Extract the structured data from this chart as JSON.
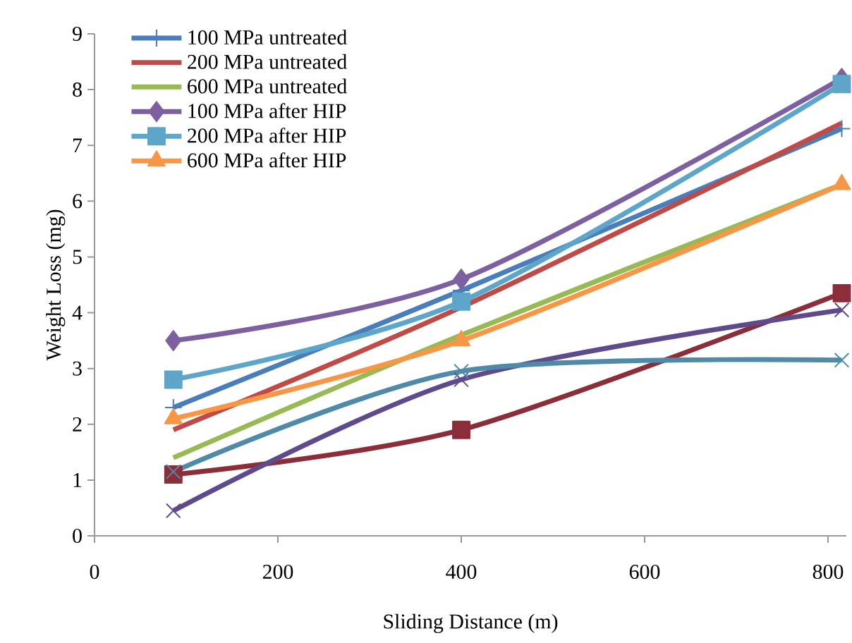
{
  "chart_data": {
    "type": "line",
    "xlabel": "Sliding Distance (m)",
    "ylabel": "Weight Loss (mg)",
    "xlim": [
      0,
      820
    ],
    "xticks": [
      0,
      200,
      400,
      600,
      800
    ],
    "ylim": [
      0,
      9
    ],
    "yticks": [
      0,
      1,
      2,
      3,
      4,
      5,
      6,
      7,
      8,
      9
    ],
    "legend": "top left",
    "grid": false,
    "series": [
      {
        "name": "100 MPa untreated",
        "color": "#4a7ebb",
        "marker": "plus",
        "x": [
          86,
          400,
          815
        ],
        "values": [
          2.3,
          4.4,
          7.3
        ]
      },
      {
        "name": "200 MPa untreated",
        "color": "#be4b48",
        "marker": "none",
        "x": [
          86,
          400,
          815
        ],
        "values": [
          1.9,
          4.1,
          7.4
        ]
      },
      {
        "name": "600 MPa untreated",
        "color": "#98b954",
        "marker": "none",
        "x": [
          86,
          400,
          815
        ],
        "values": [
          1.4,
          3.6,
          6.3
        ]
      },
      {
        "name": "100 MPa after HIP",
        "color": "#7d60a0",
        "marker": "diamond",
        "x": [
          86,
          400,
          815
        ],
        "values": [
          3.5,
          4.6,
          8.2
        ]
      },
      {
        "name": "200 MPa after HIP",
        "color": "#5ea6c9",
        "marker": "square",
        "x": [
          86,
          400,
          815
        ],
        "values": [
          2.8,
          4.2,
          8.1
        ]
      },
      {
        "name": "600 MPa after HIP",
        "color": "#f79646",
        "marker": "triangle",
        "x": [
          86,
          400,
          815
        ],
        "values": [
          2.1,
          3.5,
          6.3
        ]
      },
      {
        "color": "#8b2e3a",
        "marker": "square",
        "x": [
          86,
          400,
          815
        ],
        "values": [
          1.1,
          1.9,
          4.35
        ]
      },
      {
        "color": "#5f4b8b",
        "marker": "cross",
        "x": [
          86,
          400,
          815
        ],
        "values": [
          0.45,
          2.8,
          4.05
        ]
      },
      {
        "color": "#4f8ba8",
        "marker": "cross",
        "x": [
          86,
          400,
          815
        ],
        "values": [
          1.15,
          2.95,
          3.15
        ]
      }
    ]
  }
}
